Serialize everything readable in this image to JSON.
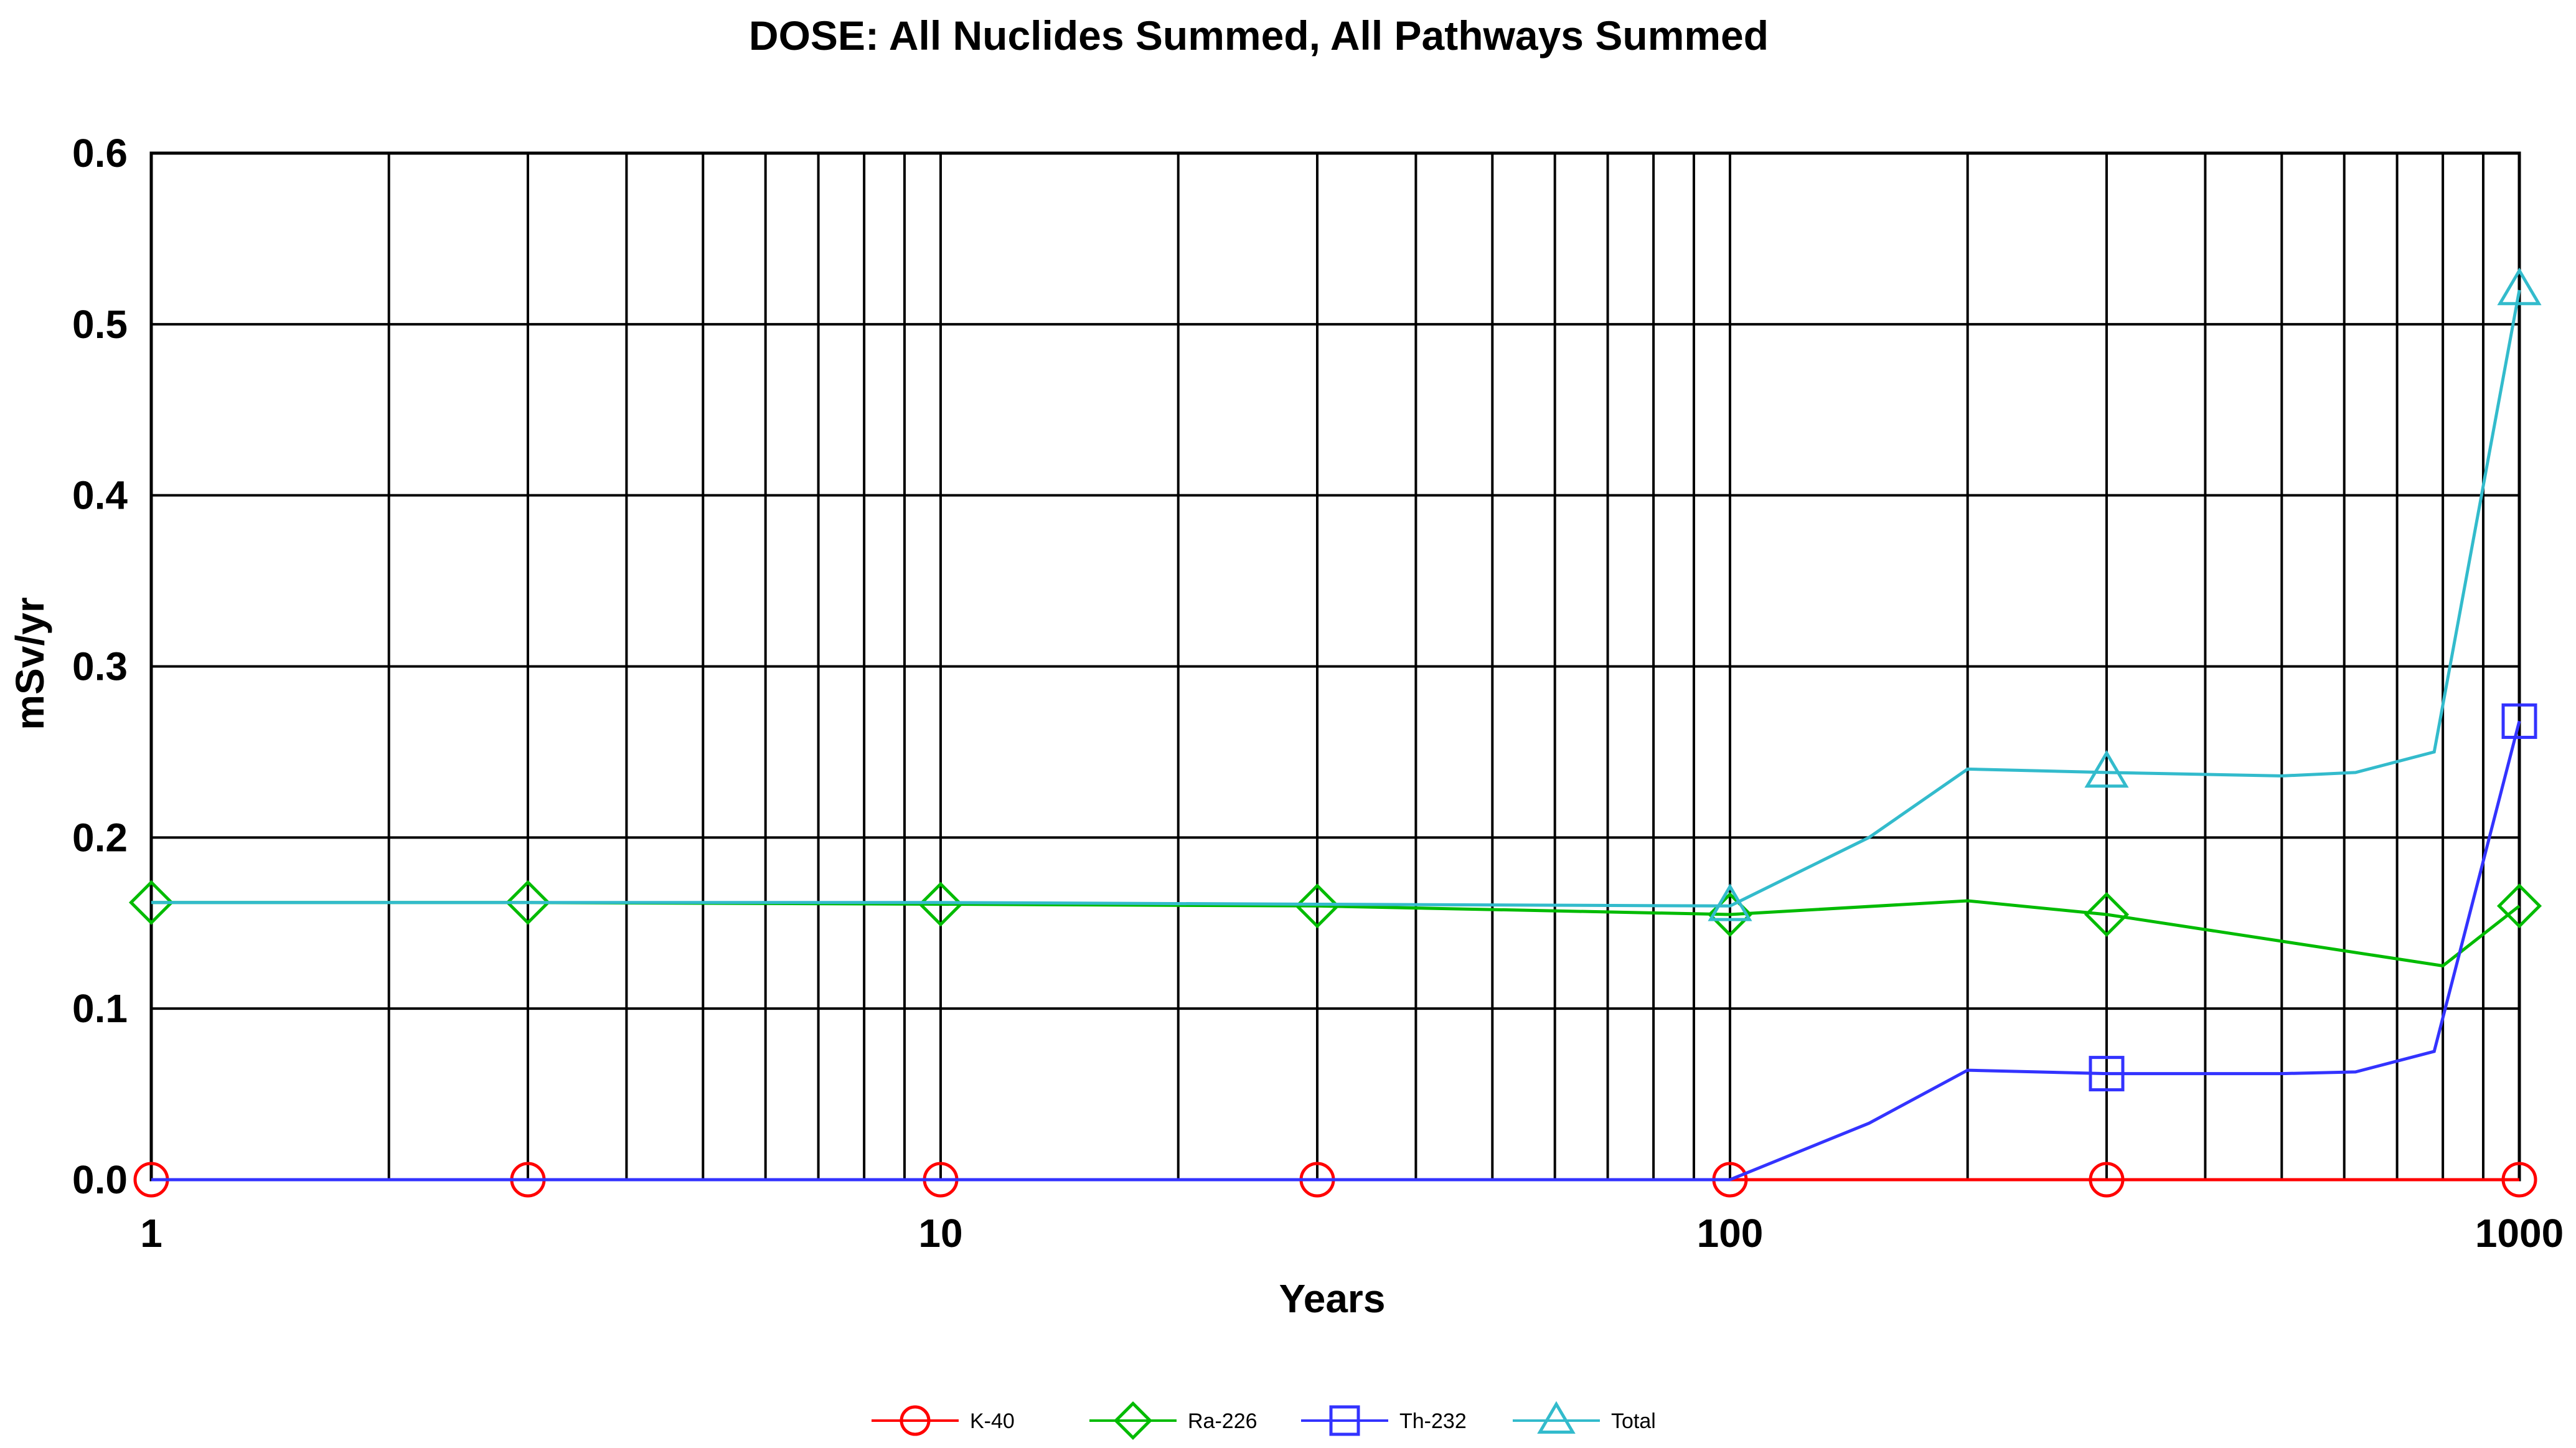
{
  "chart_data": {
    "type": "line",
    "title": "DOSE: All Nuclides Summed, All Pathways Summed",
    "xlabel": "Years",
    "ylabel": "mSv/yr",
    "x_scale": "log",
    "xlim": [
      1,
      1000
    ],
    "ylim": [
      0,
      0.6
    ],
    "x_ticks": [
      1,
      10,
      100,
      1000
    ],
    "x_tick_labels": [
      "1",
      "10",
      "100",
      "1000"
    ],
    "y_ticks": [
      0,
      0.1,
      0.2,
      0.3,
      0.4,
      0.5,
      0.6
    ],
    "y_tick_labels": [
      "0.0",
      "0.1",
      "0.2",
      "0.3",
      "0.4",
      "0.5",
      "0.6"
    ],
    "grid": true,
    "legend_position": "bottom",
    "series": [
      {
        "name": "K-40",
        "color": "#ff0000",
        "marker": "circle",
        "points": [
          [
            1,
            0.0
          ],
          [
            3,
            0.0
          ],
          [
            10,
            0.0
          ],
          [
            30,
            0.0
          ],
          [
            100,
            0.0
          ],
          [
            300,
            0.0
          ],
          [
            1000,
            0.0
          ]
        ],
        "markers": [
          [
            1,
            0.0
          ],
          [
            3,
            0.0
          ],
          [
            10,
            0.0
          ],
          [
            30,
            0.0
          ],
          [
            100,
            0.0
          ],
          [
            300,
            0.0
          ],
          [
            1000,
            0.0
          ]
        ]
      },
      {
        "name": "Ra-226",
        "color": "#00bb00",
        "marker": "diamond",
        "points": [
          [
            1,
            0.162
          ],
          [
            3,
            0.162
          ],
          [
            10,
            0.161
          ],
          [
            30,
            0.16
          ],
          [
            100,
            0.155
          ],
          [
            200,
            0.163
          ],
          [
            300,
            0.155
          ],
          [
            800,
            0.125
          ],
          [
            1000,
            0.16
          ]
        ],
        "markers": [
          [
            1,
            0.162
          ],
          [
            3,
            0.162
          ],
          [
            10,
            0.161
          ],
          [
            30,
            0.16
          ],
          [
            100,
            0.155
          ],
          [
            300,
            0.155
          ],
          [
            1000,
            0.16
          ]
        ]
      },
      {
        "name": "Th-232",
        "color": "#3333ff",
        "marker": "square",
        "points": [
          [
            1,
            0.0
          ],
          [
            3,
            0.0
          ],
          [
            10,
            0.0
          ],
          [
            30,
            0.0
          ],
          [
            100,
            0.0
          ],
          [
            150,
            0.033
          ],
          [
            200,
            0.064
          ],
          [
            300,
            0.062
          ],
          [
            500,
            0.062
          ],
          [
            620,
            0.063
          ],
          [
            780,
            0.075
          ],
          [
            1000,
            0.268
          ]
        ],
        "markers": [
          [
            300,
            0.062
          ],
          [
            1000,
            0.268
          ]
        ]
      },
      {
        "name": "Total",
        "color": "#33bbcc",
        "marker": "triangle",
        "points": [
          [
            1,
            0.162
          ],
          [
            3,
            0.162
          ],
          [
            10,
            0.162
          ],
          [
            30,
            0.161
          ],
          [
            100,
            0.16
          ],
          [
            150,
            0.2
          ],
          [
            200,
            0.24
          ],
          [
            300,
            0.238
          ],
          [
            500,
            0.236
          ],
          [
            620,
            0.238
          ],
          [
            780,
            0.25
          ],
          [
            1000,
            0.52
          ]
        ],
        "markers": [
          [
            100,
            0.16
          ],
          [
            300,
            0.238
          ],
          [
            1000,
            0.52
          ]
        ]
      }
    ]
  }
}
